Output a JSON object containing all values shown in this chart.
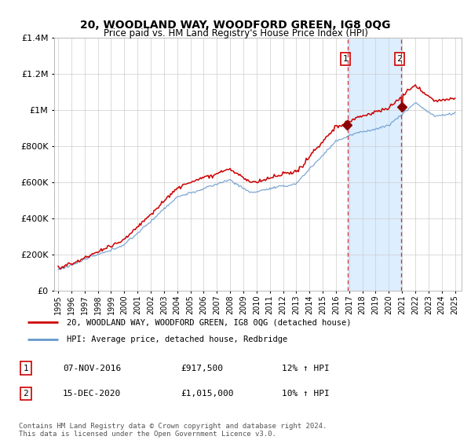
{
  "title": "20, WOODLAND WAY, WOODFORD GREEN, IG8 0QG",
  "subtitle": "Price paid vs. HM Land Registry's House Price Index (HPI)",
  "ylim": [
    0,
    1400000
  ],
  "yticks": [
    0,
    200000,
    400000,
    600000,
    800000,
    1000000,
    1200000,
    1400000
  ],
  "background_color": "#ffffff",
  "grid_color": "#cccccc",
  "hpi_color": "#6699cc",
  "price_color": "#cc0000",
  "shade_color": "#ddeeff",
  "sale1_year": 2016.87,
  "sale1_price": 917500,
  "sale2_year": 2020.96,
  "sale2_price": 1015000,
  "legend_entry1": "20, WOODLAND WAY, WOODFORD GREEN, IG8 0QG (detached house)",
  "legend_entry2": "HPI: Average price, detached house, Redbridge",
  "annotation1_label": "1",
  "annotation1_date": "07-NOV-2016",
  "annotation1_price": "£917,500",
  "annotation1_hpi": "12% ↑ HPI",
  "annotation2_label": "2",
  "annotation2_date": "15-DEC-2020",
  "annotation2_price": "£1,015,000",
  "annotation2_hpi": "10% ↑ HPI",
  "footer": "Contains HM Land Registry data © Crown copyright and database right 2024.\nThis data is licensed under the Open Government Licence v3.0."
}
